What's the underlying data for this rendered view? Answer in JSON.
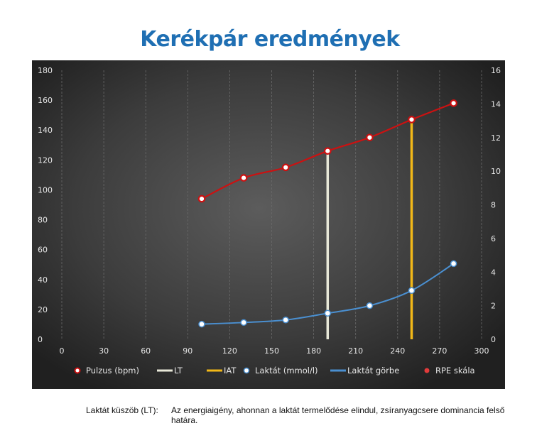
{
  "chart_data": {
    "type": "line",
    "title": "Kerékpár eredmények",
    "x_ticks": [
      "0",
      "30",
      "60",
      "90",
      "120",
      "150",
      "180",
      "210",
      "240",
      "270",
      "300"
    ],
    "y_left_ticks": [
      "0",
      "20",
      "40",
      "60",
      "80",
      "100",
      "120",
      "140",
      "160",
      "180"
    ],
    "y_right_ticks": [
      "0",
      "2",
      "4",
      "6",
      "8",
      "10",
      "12",
      "14",
      "16"
    ],
    "xlim": [
      0,
      300
    ],
    "ylim_left": [
      0,
      180
    ],
    "ylim_right": [
      0,
      16
    ],
    "grid": "vertical",
    "legend_position": "bottom",
    "series": [
      {
        "name": "Pulzus (bpm)",
        "axis": "left",
        "color": "#cc1111",
        "x": [
          100,
          130,
          160,
          190,
          220,
          250,
          280
        ],
        "y": [
          94,
          108,
          115,
          126,
          135,
          147,
          158
        ]
      },
      {
        "name": "Laktát (mmol/l)",
        "axis": "right",
        "color": "#4a8fd0",
        "x": [
          100,
          130,
          160,
          190,
          220,
          250,
          280
        ],
        "y": [
          0.9,
          1.0,
          1.15,
          1.55,
          2.0,
          2.9,
          4.5
        ]
      },
      {
        "name": "LT",
        "axis": "left",
        "type": "vline",
        "color": "#e8e8d8",
        "x": 190,
        "y_top": 126
      },
      {
        "name": "IAT",
        "axis": "left",
        "type": "vline",
        "color": "#f2b818",
        "x": 250,
        "y_top": 147
      }
    ],
    "legend": [
      {
        "name": "Pulzus (bpm)",
        "kind": "marker-red"
      },
      {
        "name": "LT",
        "kind": "line",
        "color": "#e8e8d8"
      },
      {
        "name": "IAT",
        "kind": "line",
        "color": "#f2b818"
      },
      {
        "name": "Laktát (mmol/l)",
        "kind": "marker-white"
      },
      {
        "name": "Laktát görbe",
        "kind": "line",
        "color": "#4a8fd0"
      },
      {
        "name": "RPE skála",
        "kind": "marker-red-solid"
      }
    ]
  },
  "note": {
    "label": "Laktát küszöb (LT):",
    "text": "Az energiaigény, ahonnan a laktát termelődése elindul, zsíranyagcsere dominancia felső határa."
  }
}
